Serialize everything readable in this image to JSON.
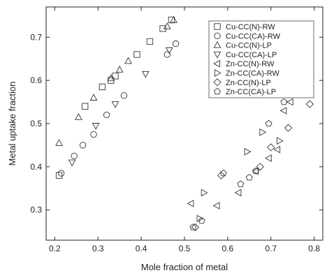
{
  "chart_data": {
    "type": "scatter",
    "xlabel": "Mole fraction of metal",
    "ylabel": "Metal uptake fraction",
    "xlim": [
      0.18,
      0.82
    ],
    "ylim": [
      0.23,
      0.77
    ],
    "xticks": [
      0.2,
      0.3,
      0.4,
      0.5,
      0.6,
      0.7,
      0.8
    ],
    "yticks": [
      0.3,
      0.4,
      0.5,
      0.6,
      0.7
    ],
    "xtick_labels": [
      "0.2",
      "0.3",
      "0.4",
      "0.5",
      "0.6",
      "0.7",
      "0.8"
    ],
    "ytick_labels": [
      "0.3",
      "0.4",
      "0.5",
      "0.6",
      "0.7"
    ],
    "grid": false,
    "legend_position": "right",
    "series": [
      {
        "name": "Cu-CC(N)-RW",
        "marker": "square",
        "x": [
          0.21,
          0.27,
          0.31,
          0.33,
          0.34,
          0.39,
          0.42,
          0.45,
          0.47
        ],
        "y": [
          0.38,
          0.54,
          0.585,
          0.6,
          0.61,
          0.66,
          0.69,
          0.72,
          0.74
        ]
      },
      {
        "name": "Cu-CC(CA)-RW",
        "marker": "circle",
        "x": [
          0.215,
          0.245,
          0.265,
          0.29,
          0.32,
          0.36,
          0.46,
          0.48
        ],
        "y": [
          0.385,
          0.425,
          0.45,
          0.475,
          0.52,
          0.565,
          0.66,
          0.685
        ]
      },
      {
        "name": "Cu-CC(N)-LP",
        "marker": "triangle-up",
        "x": [
          0.21,
          0.255,
          0.29,
          0.33,
          0.35,
          0.37,
          0.46,
          0.475
        ],
        "y": [
          0.455,
          0.515,
          0.56,
          0.605,
          0.625,
          0.645,
          0.725,
          0.74
        ]
      },
      {
        "name": "Cu-CC(CA)-LP",
        "marker": "triangle-down",
        "x": [
          0.24,
          0.295,
          0.34,
          0.41,
          0.465
        ],
        "y": [
          0.41,
          0.495,
          0.545,
          0.615,
          0.67
        ]
      },
      {
        "name": "Zn-CC(N)-RW",
        "marker": "triangle-left",
        "x": [
          0.515,
          0.575,
          0.625,
          0.665,
          0.695,
          0.715,
          0.73,
          0.745
        ],
        "y": [
          0.315,
          0.31,
          0.34,
          0.39,
          0.42,
          0.44,
          0.53,
          0.55
        ]
      },
      {
        "name": "Zn-CC(CA)-RW",
        "marker": "triangle-right",
        "x": [
          0.535,
          0.545,
          0.645,
          0.68,
          0.72,
          0.75
        ],
        "y": [
          0.28,
          0.34,
          0.435,
          0.48,
          0.46,
          0.585
        ]
      },
      {
        "name": "Zn-CC(N)-LP",
        "marker": "diamond",
        "x": [
          0.525,
          0.585,
          0.675,
          0.7,
          0.74,
          0.79
        ],
        "y": [
          0.26,
          0.38,
          0.4,
          0.445,
          0.49,
          0.545
        ]
      },
      {
        "name": "Zn-CC(CA)-LP",
        "marker": "pentagon",
        "x": [
          0.52,
          0.54,
          0.59,
          0.63,
          0.65,
          0.665,
          0.695,
          0.73,
          0.76,
          0.785
        ],
        "y": [
          0.26,
          0.275,
          0.385,
          0.36,
          0.375,
          0.39,
          0.5,
          0.55,
          0.58,
          0.615
        ]
      }
    ]
  }
}
